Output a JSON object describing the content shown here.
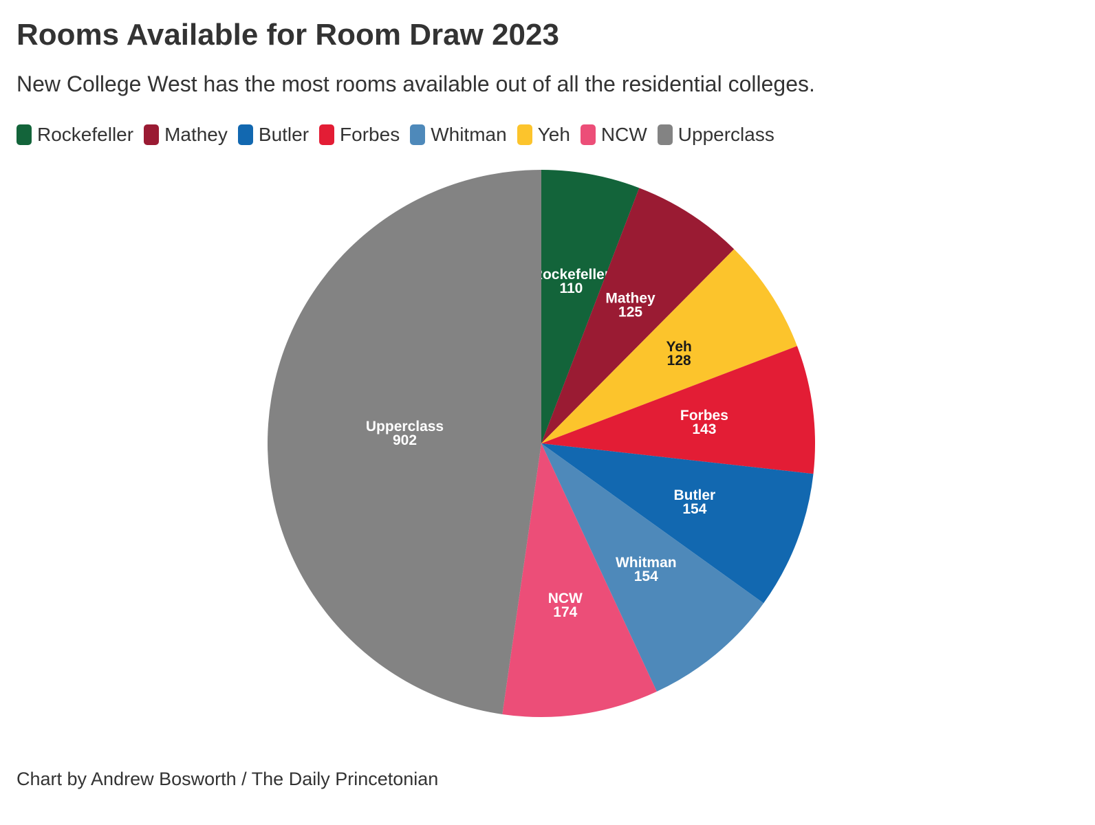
{
  "title": "Rooms Available for Room Draw 2023",
  "subtitle": "New College West has the most rooms available out of all the residential colleges.",
  "legend": [
    {
      "label": "Rockefeller",
      "color": "#13643a"
    },
    {
      "label": "Mathey",
      "color": "#9a1b33"
    },
    {
      "label": "Butler",
      "color": "#1268b0"
    },
    {
      "label": "Forbes",
      "color": "#e31d35"
    },
    {
      "label": "Whitman",
      "color": "#4e89ba"
    },
    {
      "label": "Yeh",
      "color": "#fcc42c"
    },
    {
      "label": "NCW",
      "color": "#ec4e78"
    },
    {
      "label": "Upperclass",
      "color": "#838383"
    }
  ],
  "footer": "Chart by Andrew Bosworth / The Daily Princetonian",
  "chart_data": {
    "type": "pie",
    "title": "Rooms Available for Room Draw 2023",
    "slices": [
      {
        "label": "Rockefeller",
        "value": 110,
        "color": "#13643a",
        "label_color": "#ffffff",
        "outlined": true
      },
      {
        "label": "Mathey",
        "value": 125,
        "color": "#9a1b33",
        "label_color": "#ffffff"
      },
      {
        "label": "Yeh",
        "value": 128,
        "color": "#fcc42c",
        "label_color": "#1a1a1a"
      },
      {
        "label": "Forbes",
        "value": 143,
        "color": "#e31d35",
        "label_color": "#ffffff"
      },
      {
        "label": "Butler",
        "value": 154,
        "color": "#1268b0",
        "label_color": "#ffffff"
      },
      {
        "label": "Whitman",
        "value": 154,
        "color": "#4e89ba",
        "label_color": "#ffffff"
      },
      {
        "label": "NCW",
        "value": 174,
        "color": "#ec4e78",
        "label_color": "#ffffff"
      },
      {
        "label": "Upperclass",
        "value": 902,
        "color": "#838383",
        "label_color": "#ffffff"
      }
    ],
    "start": "12 o'clock",
    "direction": "clockwise",
    "legend_position": "top-left"
  }
}
